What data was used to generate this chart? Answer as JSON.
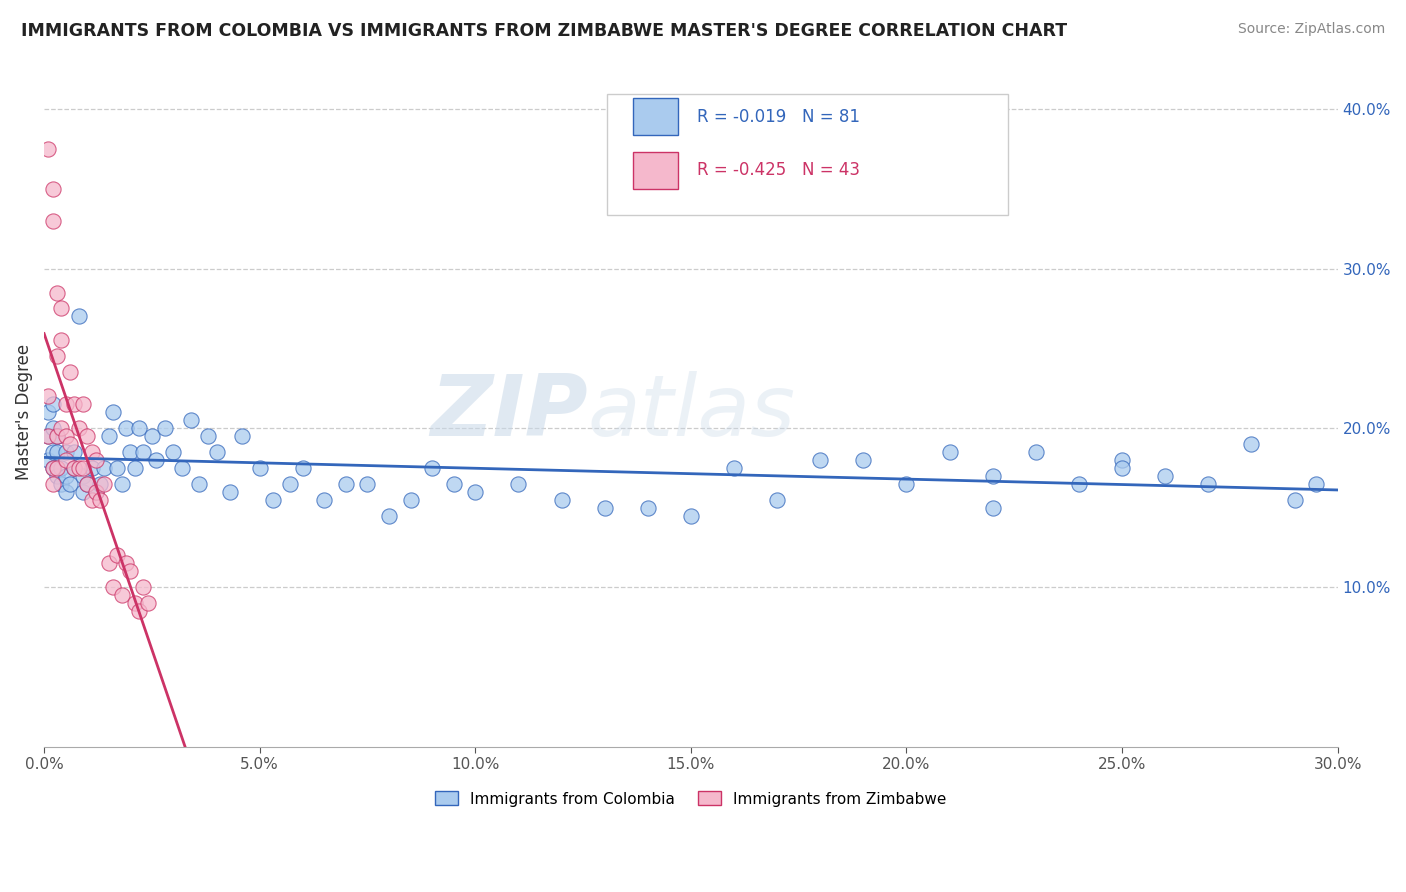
{
  "title": "IMMIGRANTS FROM COLOMBIA VS IMMIGRANTS FROM ZIMBABWE MASTER'S DEGREE CORRELATION CHART",
  "source_text": "Source: ZipAtlas.com",
  "ylabel": "Master's Degree",
  "legend_colombia": "Immigrants from Colombia",
  "legend_zimbabwe": "Immigrants from Zimbabwe",
  "r_colombia": -0.019,
  "n_colombia": 81,
  "r_zimbabwe": -0.425,
  "n_zimbabwe": 43,
  "color_colombia": "#aacbee",
  "color_zimbabwe": "#f5b8cc",
  "line_color_colombia": "#3366bb",
  "line_color_zimbabwe": "#cc3366",
  "watermark_zip": "ZIP",
  "watermark_atlas": "atlas",
  "xlim": [
    0.0,
    0.3
  ],
  "ylim": [
    0.0,
    0.42
  ],
  "yticks_right": [
    0.1,
    0.2,
    0.3,
    0.4
  ],
  "ytick_labels_right": [
    "10.0%",
    "20.0%",
    "30.0%",
    "40.0%"
  ],
  "colombia_x": [
    0.001,
    0.001,
    0.001,
    0.002,
    0.002,
    0.002,
    0.002,
    0.003,
    0.003,
    0.003,
    0.004,
    0.004,
    0.005,
    0.005,
    0.005,
    0.006,
    0.007,
    0.007,
    0.008,
    0.009,
    0.009,
    0.01,
    0.011,
    0.012,
    0.013,
    0.014,
    0.015,
    0.016,
    0.017,
    0.018,
    0.019,
    0.02,
    0.021,
    0.022,
    0.023,
    0.025,
    0.026,
    0.028,
    0.03,
    0.032,
    0.034,
    0.036,
    0.038,
    0.04,
    0.043,
    0.046,
    0.05,
    0.053,
    0.057,
    0.06,
    0.065,
    0.07,
    0.075,
    0.08,
    0.085,
    0.09,
    0.095,
    0.1,
    0.11,
    0.12,
    0.13,
    0.14,
    0.15,
    0.16,
    0.17,
    0.18,
    0.19,
    0.2,
    0.21,
    0.22,
    0.23,
    0.24,
    0.25,
    0.26,
    0.27,
    0.28,
    0.29,
    0.295,
    0.25,
    0.22,
    0.003
  ],
  "colombia_y": [
    0.195,
    0.18,
    0.21,
    0.185,
    0.175,
    0.2,
    0.215,
    0.17,
    0.185,
    0.195,
    0.165,
    0.175,
    0.16,
    0.17,
    0.185,
    0.165,
    0.175,
    0.185,
    0.27,
    0.16,
    0.17,
    0.165,
    0.175,
    0.16,
    0.165,
    0.175,
    0.195,
    0.21,
    0.175,
    0.165,
    0.2,
    0.185,
    0.175,
    0.2,
    0.185,
    0.195,
    0.18,
    0.2,
    0.185,
    0.175,
    0.205,
    0.165,
    0.195,
    0.185,
    0.16,
    0.195,
    0.175,
    0.155,
    0.165,
    0.175,
    0.155,
    0.165,
    0.165,
    0.145,
    0.155,
    0.175,
    0.165,
    0.16,
    0.165,
    0.155,
    0.15,
    0.15,
    0.145,
    0.175,
    0.155,
    0.18,
    0.18,
    0.165,
    0.185,
    0.15,
    0.185,
    0.165,
    0.18,
    0.17,
    0.165,
    0.19,
    0.155,
    0.165,
    0.175,
    0.17,
    0.195
  ],
  "zimbabwe_x": [
    0.001,
    0.001,
    0.001,
    0.002,
    0.002,
    0.002,
    0.002,
    0.003,
    0.003,
    0.003,
    0.003,
    0.004,
    0.004,
    0.004,
    0.005,
    0.005,
    0.005,
    0.006,
    0.006,
    0.007,
    0.007,
    0.008,
    0.008,
    0.009,
    0.009,
    0.01,
    0.01,
    0.011,
    0.011,
    0.012,
    0.012,
    0.013,
    0.014,
    0.015,
    0.016,
    0.017,
    0.018,
    0.019,
    0.02,
    0.021,
    0.022,
    0.023,
    0.024
  ],
  "zimbabwe_y": [
    0.375,
    0.195,
    0.22,
    0.35,
    0.33,
    0.165,
    0.175,
    0.285,
    0.245,
    0.195,
    0.175,
    0.275,
    0.255,
    0.2,
    0.215,
    0.195,
    0.18,
    0.235,
    0.19,
    0.215,
    0.175,
    0.2,
    0.175,
    0.215,
    0.175,
    0.195,
    0.165,
    0.185,
    0.155,
    0.18,
    0.16,
    0.155,
    0.165,
    0.115,
    0.1,
    0.12,
    0.095,
    0.115,
    0.11,
    0.09,
    0.085,
    0.1,
    0.09
  ]
}
